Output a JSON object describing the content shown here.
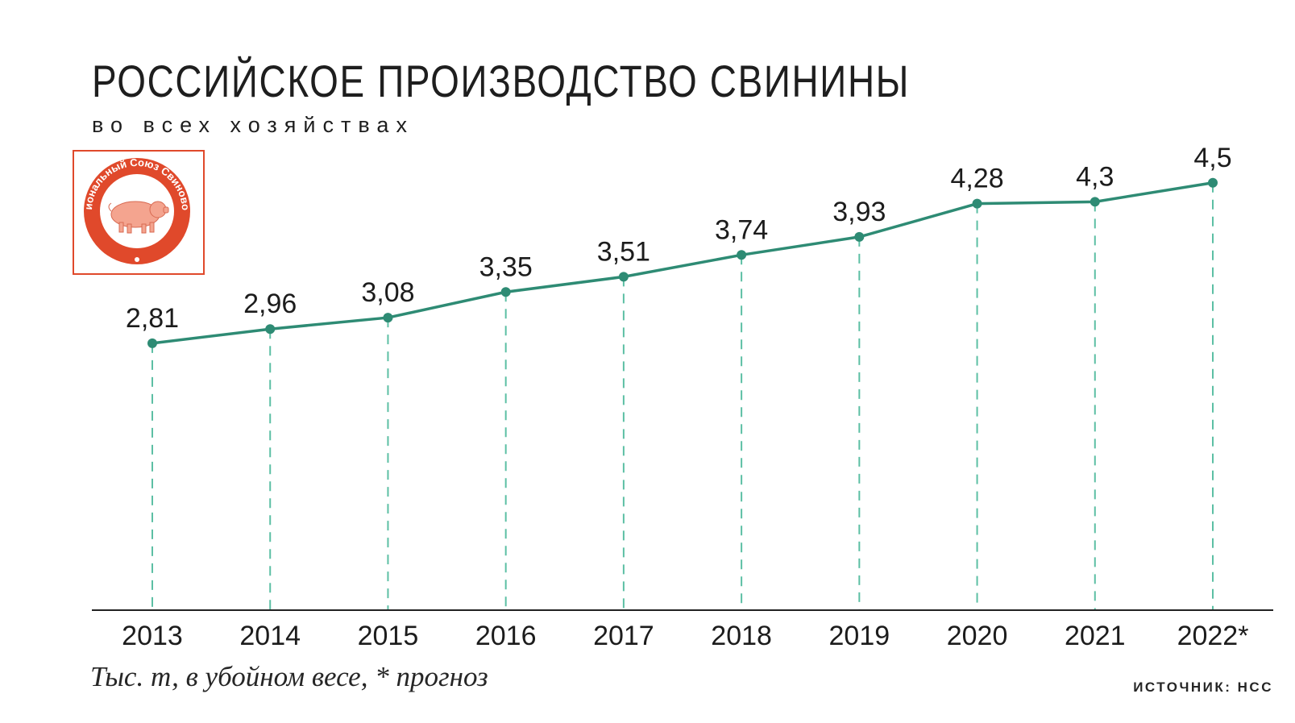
{
  "title": "РОССИЙСКОЕ ПРОИЗВОДСТВО СВИНИНЫ",
  "subtitle": "во всех хозяйствах",
  "note": "Тыс. т, в убойном весе, * прогноз",
  "source": "ИСТОЧНИК: НСС",
  "logo": {
    "text": "Национальный Союз Свиноводов",
    "icon": "pig-icon"
  },
  "colors": {
    "line": "#2e8b74",
    "gridline": "#5cbfa4",
    "axis": "#222222",
    "logo": "#e0492b"
  },
  "chart_data": {
    "type": "line",
    "categories": [
      "2013",
      "2014",
      "2015",
      "2016",
      "2017",
      "2018",
      "2019",
      "2020",
      "2021",
      "2022*"
    ],
    "series": [
      {
        "values": [
          2.81,
          2.96,
          3.08,
          3.35,
          3.51,
          3.74,
          3.93,
          4.28,
          4.3,
          4.5
        ]
      }
    ],
    "data_labels": [
      "2,81",
      "2,96",
      "3,08",
      "3,35",
      "3,51",
      "3,74",
      "3,93",
      "4,28",
      "4,3",
      "4,5"
    ],
    "ylim": [
      0,
      6.0
    ],
    "grid": "vertical dashed drop lines",
    "legend": "none"
  }
}
